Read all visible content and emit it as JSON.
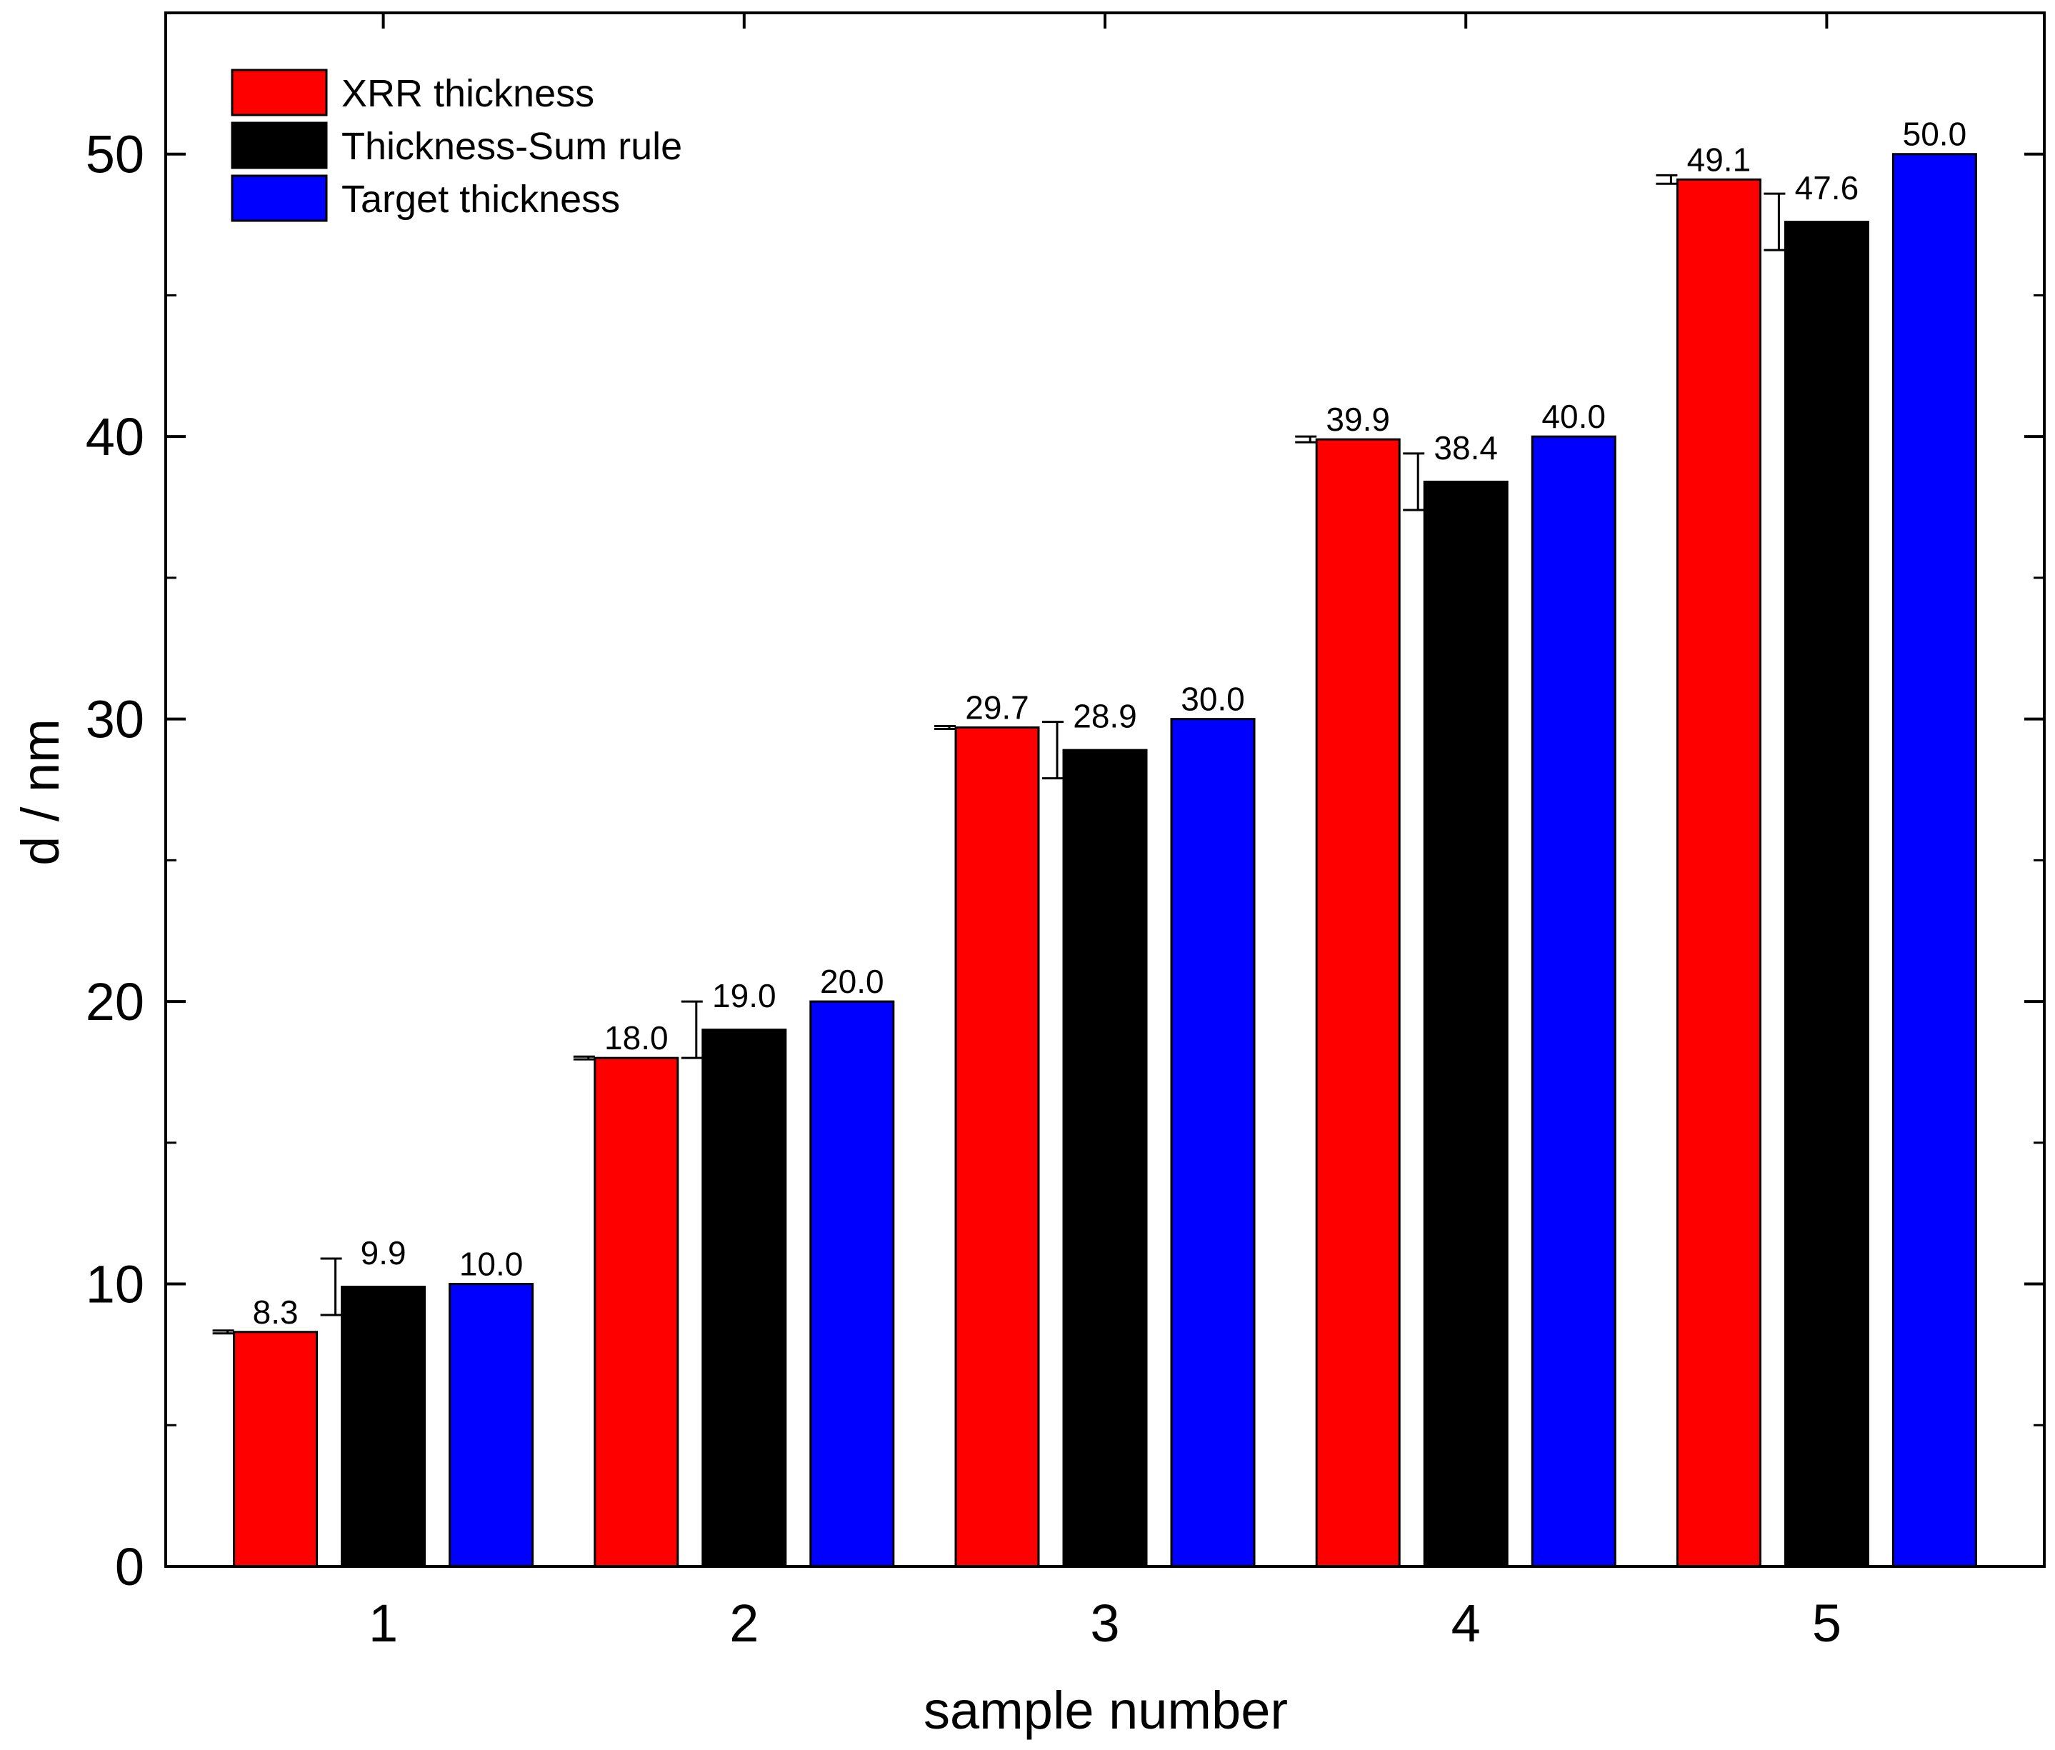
{
  "chart_data": {
    "type": "bar",
    "title": "",
    "xlabel": "sample number",
    "ylabel": "d / nm",
    "categories": [
      "1",
      "2",
      "3",
      "4",
      "5"
    ],
    "ylim": [
      0,
      55
    ],
    "yticks": [
      0,
      10,
      20,
      30,
      40,
      50
    ],
    "yticks_minor": [
      5,
      15,
      25,
      35,
      45
    ],
    "grid": false,
    "legend_position": "top-left",
    "series": [
      {
        "name": "XRR thickness",
        "color": "#ff0000",
        "values": [
          8.3,
          18.0,
          29.7,
          39.9,
          49.1
        ],
        "labels": [
          "8.3",
          "18.0",
          "29.7",
          "39.9",
          "49.1"
        ],
        "errors": [
          0.05,
          0.05,
          0.05,
          0.1,
          0.15
        ]
      },
      {
        "name": "Thickness-Sum rule",
        "color": "#000000",
        "values": [
          9.9,
          19.0,
          28.9,
          38.4,
          47.6
        ],
        "labels": [
          "9.9",
          "19.0",
          "28.9",
          "38.4",
          "47.6"
        ],
        "errors": [
          1.0,
          1.0,
          1.0,
          1.0,
          1.0
        ]
      },
      {
        "name": "Target thickness",
        "color": "#0000ff",
        "values": [
          10.0,
          20.0,
          30.0,
          40.0,
          50.0
        ],
        "labels": [
          "10.0",
          "20.0",
          "30.0",
          "40.0",
          "50.0"
        ],
        "errors": null
      }
    ]
  }
}
